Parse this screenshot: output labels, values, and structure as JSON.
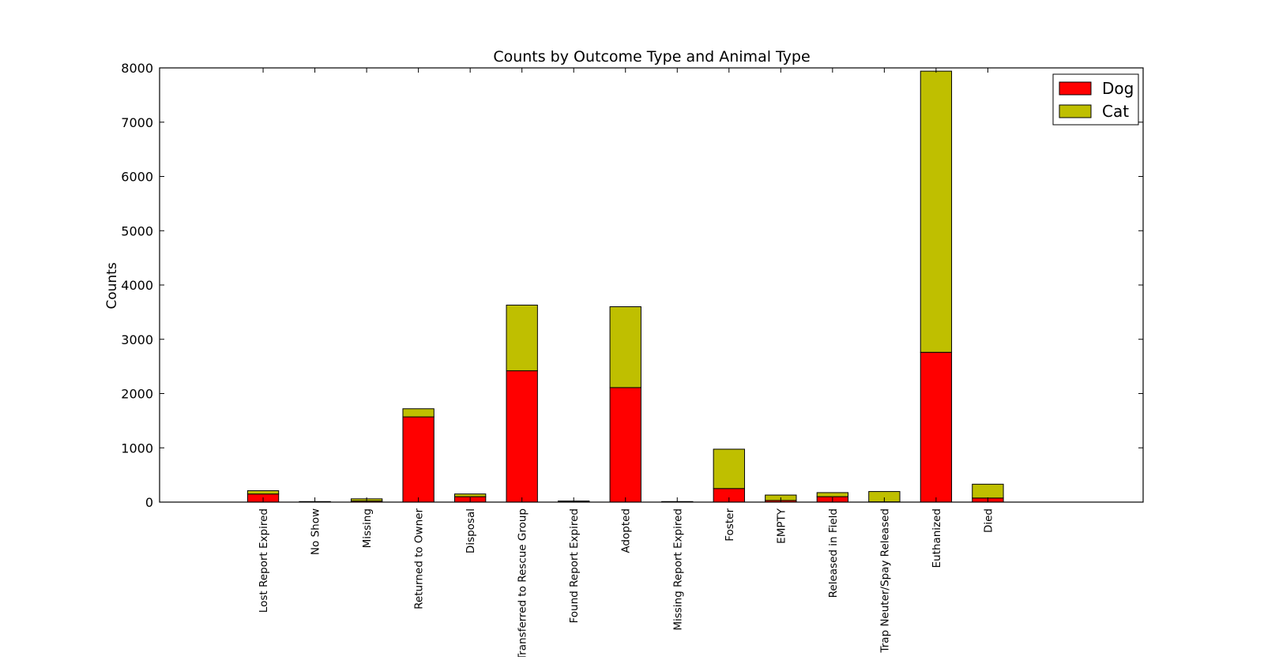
{
  "chart_data": {
    "type": "bar",
    "stacked": true,
    "title": "Counts by Outcome Type and Animal Type",
    "xlabel": "",
    "ylabel": "Counts",
    "ylim": [
      0,
      8000
    ],
    "yticks": [
      0,
      1000,
      2000,
      3000,
      4000,
      5000,
      6000,
      7000,
      8000
    ],
    "grid": false,
    "legend_position": "top-right",
    "categories": [
      "Lost Report Expired",
      "No Show",
      "Missing",
      "Returned to Owner",
      "Disposal",
      "Transferred to Rescue Group",
      "Found Report Expired",
      "Adopted",
      "Missing Report Expired",
      "Foster",
      "EMPTY",
      "Released in Field",
      "Trap Neuter/Spay Released",
      "Euthanized",
      "Died"
    ],
    "series": [
      {
        "name": "Dog",
        "color": "#ff0000",
        "values": [
          150,
          5,
          20,
          1570,
          100,
          2420,
          10,
          2110,
          5,
          250,
          30,
          100,
          5,
          2760,
          75
        ]
      },
      {
        "name": "Cat",
        "color": "#bfbf00",
        "values": [
          60,
          5,
          40,
          150,
          50,
          1210,
          10,
          1490,
          5,
          725,
          100,
          75,
          190,
          5180,
          255
        ]
      }
    ]
  }
}
